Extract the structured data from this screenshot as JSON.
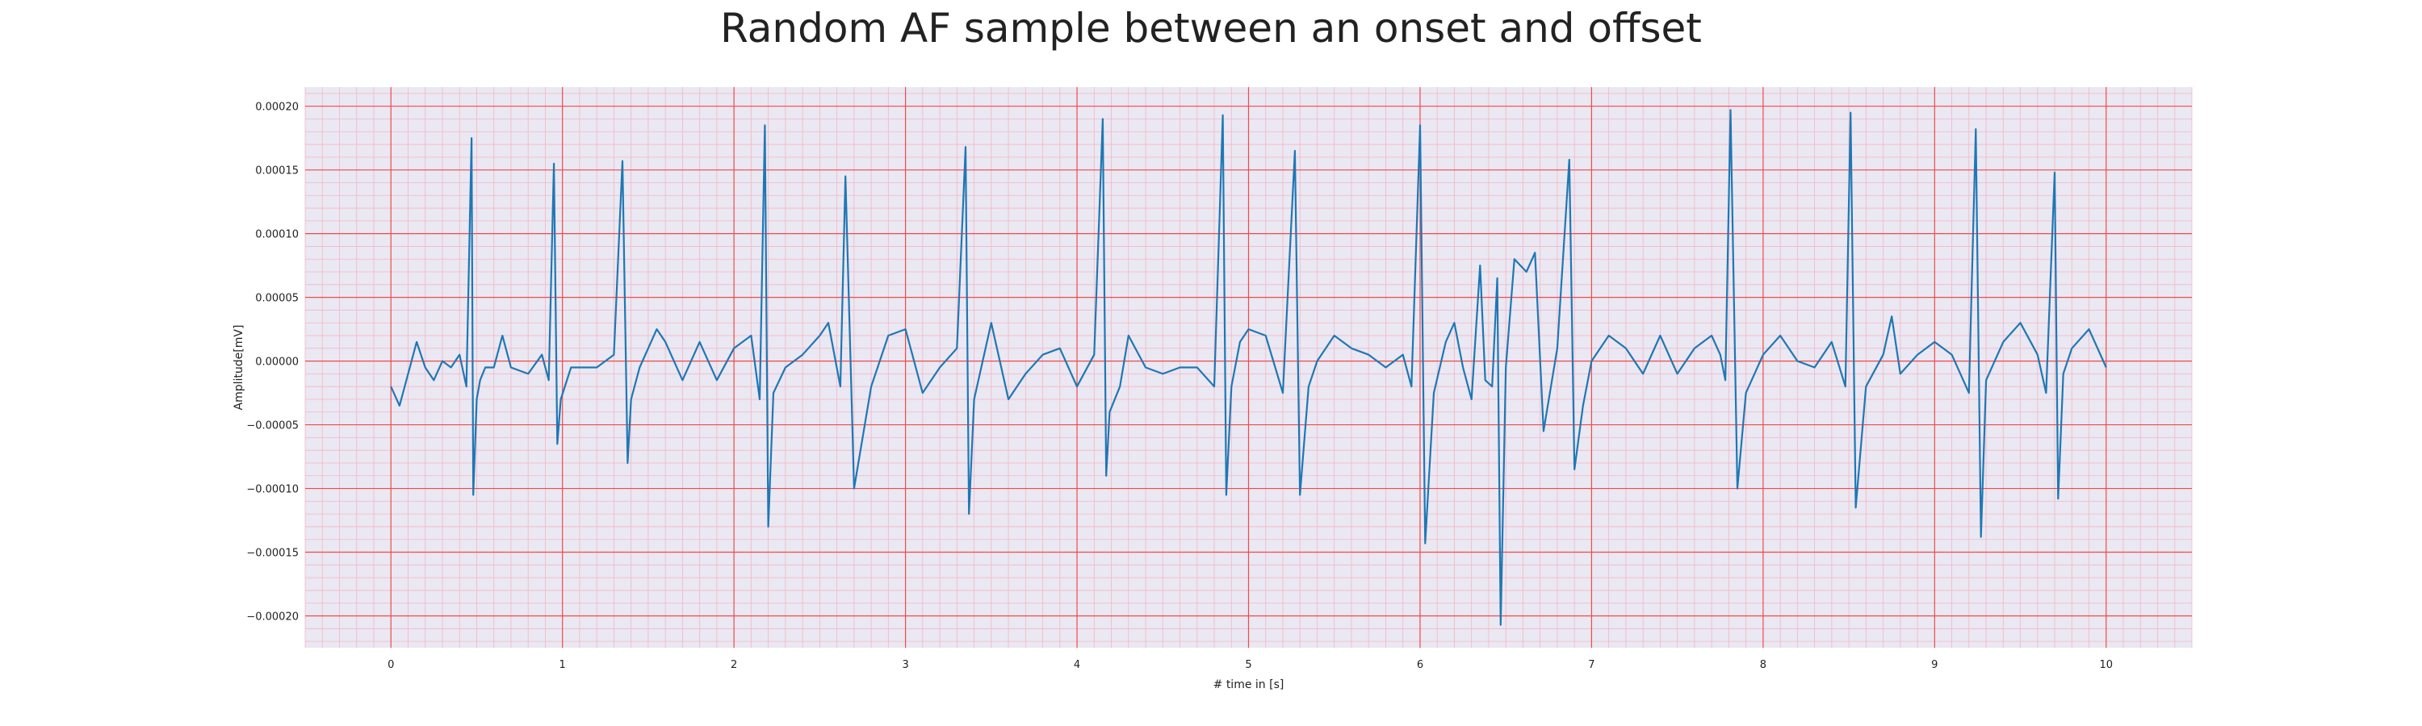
{
  "chart_data": {
    "type": "line",
    "title": "Random AF sample between an onset and offset",
    "xlabel": "# time in [s]",
    "ylabel": "Amplitude[mV]",
    "xlim": [
      -0.5,
      10.5
    ],
    "ylim": [
      -0.000225,
      0.000215
    ],
    "x_ticks": [
      0,
      1,
      2,
      3,
      4,
      5,
      6,
      7,
      8,
      9,
      10
    ],
    "x_tick_labels": [
      "0",
      "1",
      "2",
      "3",
      "4",
      "5",
      "6",
      "7",
      "8",
      "9",
      "10"
    ],
    "y_ticks": [
      0.0002,
      0.00015,
      0.0001,
      5e-05,
      0,
      -5e-05,
      -0.0001,
      -0.00015,
      -0.0002
    ],
    "y_tick_labels": [
      "0.00020",
      "0.00015",
      "0.00010",
      "0.00005",
      "0.00000",
      "−0.00005",
      "−0.00010",
      "−0.00015",
      "−0.00020"
    ],
    "grid": true,
    "colors": {
      "line": "#1f77b4",
      "background": "#eae8f2",
      "major_grid": "#ef4a4a",
      "minor_grid": "#f3b6c4"
    },
    "series": [
      {
        "x": [
          0.0,
          0.05,
          0.1,
          0.15,
          0.2,
          0.25,
          0.3,
          0.35,
          0.4,
          0.44,
          0.47,
          0.48,
          0.5,
          0.52,
          0.55,
          0.6,
          0.65,
          0.7,
          0.8,
          0.88,
          0.92,
          0.95,
          0.97,
          0.99,
          1.05,
          1.1,
          1.2,
          1.3,
          1.35,
          1.38,
          1.4,
          1.45,
          1.5,
          1.55,
          1.6,
          1.7,
          1.8,
          1.9,
          2.0,
          2.1,
          2.15,
          2.18,
          2.2,
          2.23,
          2.3,
          2.4,
          2.5,
          2.55,
          2.62,
          2.65,
          2.7,
          2.8,
          2.9,
          3.0,
          3.1,
          3.2,
          3.3,
          3.35,
          3.37,
          3.4,
          3.5,
          3.6,
          3.7,
          3.8,
          3.9,
          4.0,
          4.1,
          4.15,
          4.17,
          4.19,
          4.25,
          4.3,
          4.4,
          4.5,
          4.6,
          4.7,
          4.8,
          4.85,
          4.87,
          4.9,
          4.95,
          5.0,
          5.1,
          5.2,
          5.27,
          5.3,
          5.35,
          5.4,
          5.5,
          5.6,
          5.7,
          5.8,
          5.9,
          5.95,
          6.0,
          6.03,
          6.08,
          6.15,
          6.2,
          6.25,
          6.3,
          6.35,
          6.38,
          6.42,
          6.45,
          6.47,
          6.5,
          6.55,
          6.62,
          6.67,
          6.72,
          6.8,
          6.87,
          6.9,
          6.95,
          7.0,
          7.1,
          7.2,
          7.3,
          7.4,
          7.5,
          7.6,
          7.7,
          7.75,
          7.78,
          7.81,
          7.85,
          7.9,
          8.0,
          8.1,
          8.2,
          8.3,
          8.4,
          8.48,
          8.51,
          8.54,
          8.6,
          8.7,
          8.75,
          8.8,
          8.9,
          9.0,
          9.1,
          9.2,
          9.24,
          9.27,
          9.3,
          9.4,
          9.5,
          9.6,
          9.65,
          9.7,
          9.72,
          9.75,
          9.8,
          9.9,
          10.0
        ],
        "y": [
          -2e-05,
          -3.5e-05,
          -1e-05,
          1.5e-05,
          -5e-06,
          -1.5e-05,
          0.0,
          -5e-06,
          5e-06,
          -2e-05,
          0.000175,
          -0.000105,
          -3e-05,
          -1.5e-05,
          -5e-06,
          -5e-06,
          2e-05,
          -5e-06,
          -1e-05,
          5e-06,
          -1.5e-05,
          0.000155,
          -6.5e-05,
          -3e-05,
          -5e-06,
          -5e-06,
          -5e-06,
          5e-06,
          0.000157,
          -8e-05,
          -3e-05,
          -5e-06,
          1e-05,
          2.5e-05,
          1.5e-05,
          -1.5e-05,
          1.5e-05,
          -1.5e-05,
          1e-05,
          2e-05,
          -3e-05,
          0.000185,
          -0.00013,
          -2.5e-05,
          -5e-06,
          5e-06,
          2e-05,
          3e-05,
          -2e-05,
          0.000145,
          -0.0001,
          -2e-05,
          2e-05,
          2.5e-05,
          -2.5e-05,
          -5e-06,
          1e-05,
          0.000168,
          -0.00012,
          -3e-05,
          3e-05,
          -3e-05,
          -1e-05,
          5e-06,
          1e-05,
          -2e-05,
          5e-06,
          0.00019,
          -9e-05,
          -4e-05,
          -2e-05,
          2e-05,
          -5e-06,
          -1e-05,
          -5e-06,
          -5e-06,
          -2e-05,
          0.000193,
          -0.000105,
          -2e-05,
          1.5e-05,
          2.5e-05,
          2e-05,
          -2.5e-05,
          0.000165,
          -0.000105,
          -2e-05,
          0.0,
          2e-05,
          1e-05,
          5e-06,
          -5e-06,
          5e-06,
          -2e-05,
          0.000185,
          -0.000143,
          -2.5e-05,
          1.5e-05,
          3e-05,
          -5e-06,
          -3e-05,
          7.5e-05,
          -1.5e-05,
          -2e-05,
          6.5e-05,
          -0.000207,
          -5e-06,
          8e-05,
          7e-05,
          8.5e-05,
          -5.5e-05,
          1e-05,
          0.000158,
          -8.5e-05,
          -3.5e-05,
          0.0,
          2e-05,
          1e-05,
          -1e-05,
          2e-05,
          -1e-05,
          1e-05,
          2e-05,
          5e-06,
          -1.5e-05,
          0.000197,
          -0.0001,
          -2.5e-05,
          5e-06,
          2e-05,
          0.0,
          -5e-06,
          1.5e-05,
          -2e-05,
          0.000195,
          -0.000115,
          -2e-05,
          5e-06,
          3.5e-05,
          -1e-05,
          5e-06,
          1.5e-05,
          5e-06,
          -2.5e-05,
          0.000182,
          -0.000138,
          -1.5e-05,
          1.5e-05,
          3e-05,
          5e-06,
          -2.5e-05,
          0.000148,
          -0.000108,
          -1e-05,
          1e-05,
          2.5e-05,
          -5e-06
        ]
      }
    ]
  }
}
